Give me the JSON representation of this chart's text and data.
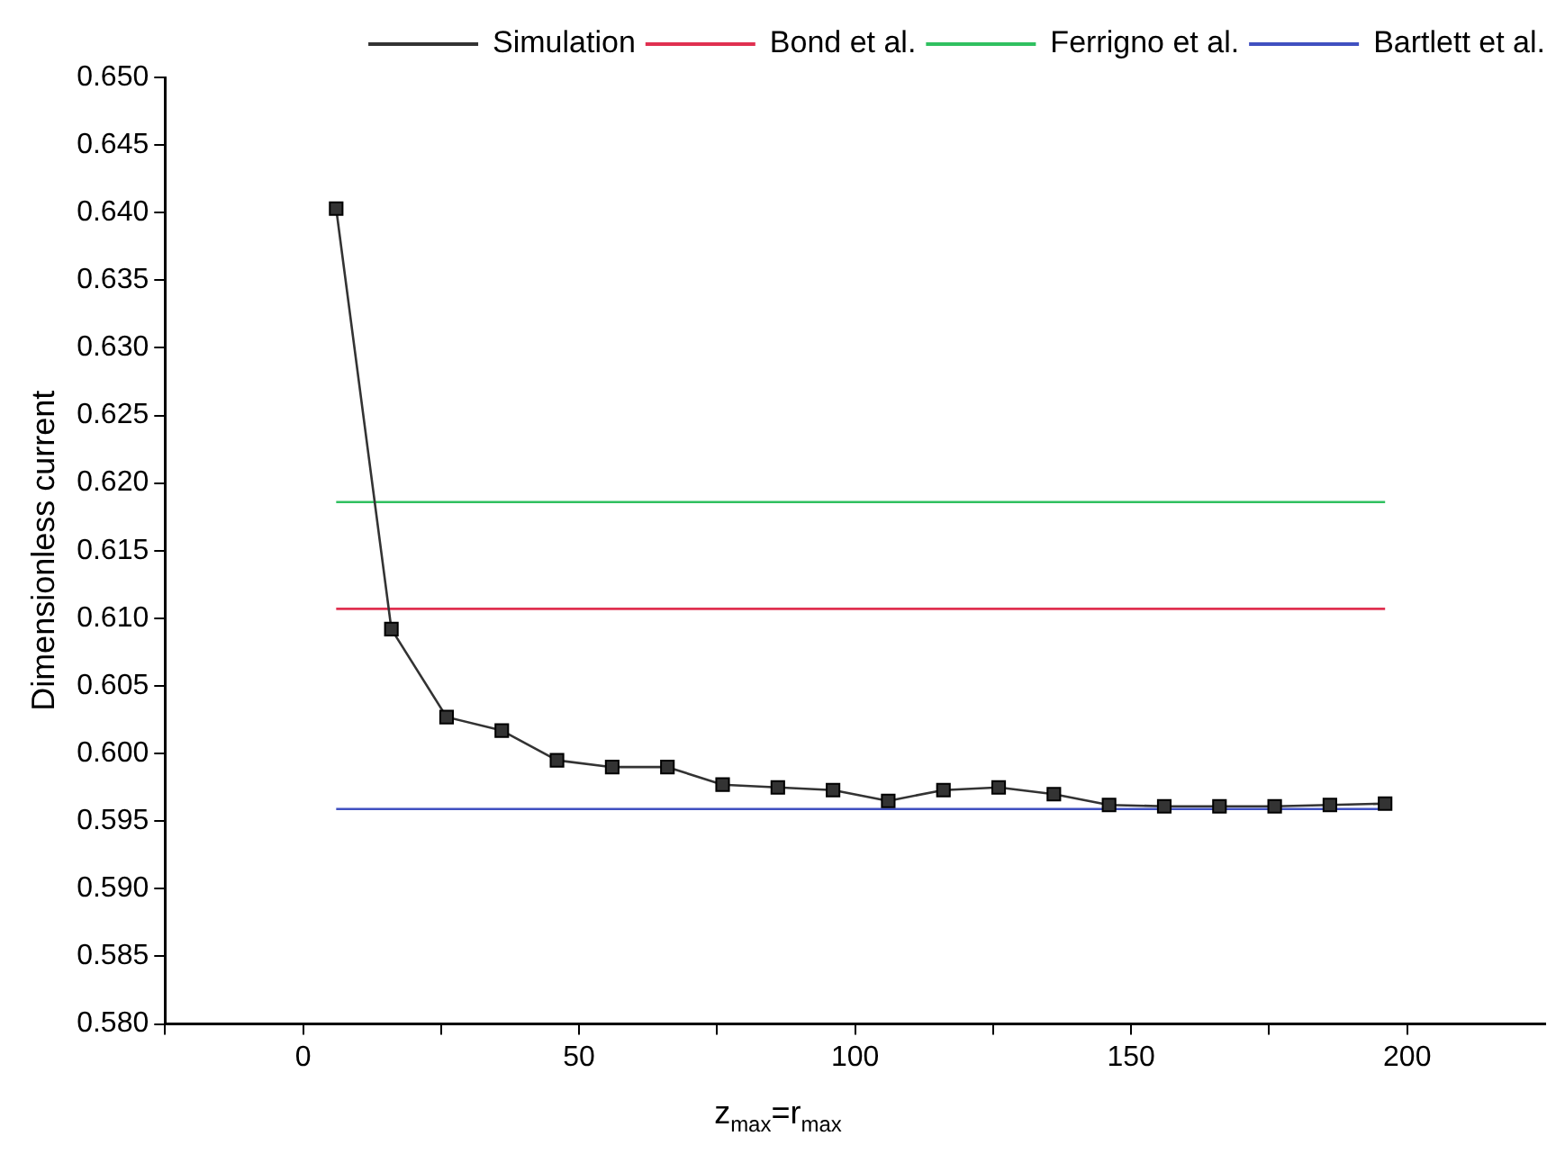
{
  "chart_data": {
    "type": "line",
    "xlabel": "z$_{max}$=r$_{max}$",
    "ylabel": "Dimensionless current",
    "xlim": [
      -25,
      225
    ],
    "xticks": [
      {
        "value": -25,
        "label": null
      },
      0,
      {
        "value": 25,
        "label": null
      },
      50,
      {
        "value": 75,
        "label": null
      },
      100,
      {
        "value": 125,
        "label": null
      },
      150,
      {
        "value": 175,
        "label": null
      },
      200
    ],
    "ylim": [
      0.58,
      0.65
    ],
    "yticks": [
      {
        "value": 0.58,
        "label": "0.580"
      },
      0.585,
      {
        "value": 0.59,
        "label": "0.590"
      },
      0.595,
      {
        "value": 0.6,
        "label": "0.600"
      },
      0.605,
      {
        "value": 0.61,
        "label": "0.610"
      },
      0.615,
      {
        "value": 0.62,
        "label": "0.620"
      },
      0.625,
      {
        "value": 0.63,
        "label": "0.630"
      },
      0.635,
      {
        "value": 0.64,
        "label": "0.640"
      },
      0.645,
      {
        "value": 0.65,
        "label": "0.650"
      }
    ],
    "grid": false,
    "legend": "top right",
    "series": [
      {
        "name": "Simulation",
        "color": "#333333",
        "marker": "square",
        "x": [
          6,
          16,
          26,
          36,
          46,
          56,
          66,
          76,
          86,
          96,
          106,
          116,
          126,
          136,
          146,
          156,
          166,
          176,
          186,
          196
        ],
        "values": [
          0.6403,
          0.6092,
          0.6027,
          0.6017,
          0.5995,
          0.599,
          0.599,
          0.5977,
          0.5975,
          0.5973,
          0.5965,
          0.5973,
          0.5975,
          0.597,
          0.5962,
          0.5961,
          0.5961,
          0.5961,
          0.5962,
          0.5963
        ]
      },
      {
        "name": "Bond et al.",
        "color": "#e03050",
        "marker": "none",
        "x": [
          6,
          196
        ],
        "values": [
          0.6107,
          0.6107
        ]
      },
      {
        "name": "Ferrigno et al.",
        "color": "#30c060",
        "marker": "none",
        "x": [
          6,
          196
        ],
        "values": [
          0.6186,
          0.6186
        ]
      },
      {
        "name": "Bartlett et al.",
        "color": "#4050c0",
        "marker": "none",
        "x": [
          6,
          196
        ],
        "values": [
          0.5959,
          0.5959
        ]
      }
    ]
  }
}
